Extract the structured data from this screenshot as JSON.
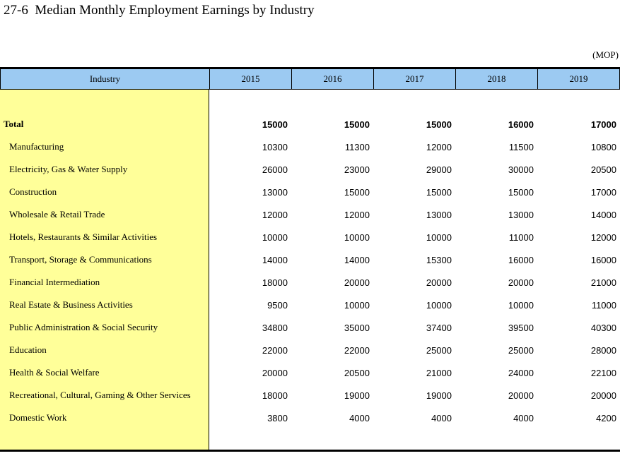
{
  "page": {
    "title": "27-6  Median Monthly Employment Earnings by Industry",
    "unit_label": "(MOP)"
  },
  "colors": {
    "header_bg": "#9ccaf2",
    "stub_bg": "#ffff99",
    "border": "#000000"
  },
  "table": {
    "columns": [
      "Industry",
      "2015",
      "2016",
      "2017",
      "2018",
      "2019"
    ],
    "rows": [
      {
        "label": "Total",
        "bold": true,
        "indent": false,
        "values": [
          "15000",
          "15000",
          "15000",
          "16000",
          "17000"
        ]
      },
      {
        "label": "Manufacturing",
        "bold": false,
        "indent": true,
        "values": [
          "10300",
          "11300",
          "12000",
          "11500",
          "10800"
        ]
      },
      {
        "label": "Electricity, Gas & Water Supply",
        "bold": false,
        "indent": true,
        "values": [
          "26000",
          "23000",
          "29000",
          "30000",
          "20500"
        ]
      },
      {
        "label": "Construction",
        "bold": false,
        "indent": true,
        "values": [
          "13000",
          "15000",
          "15000",
          "15000",
          "17000"
        ]
      },
      {
        "label": "Wholesale & Retail Trade",
        "bold": false,
        "indent": true,
        "values": [
          "12000",
          "12000",
          "13000",
          "13000",
          "14000"
        ]
      },
      {
        "label": "Hotels, Restaurants & Similar Activities",
        "bold": false,
        "indent": true,
        "values": [
          "10000",
          "10000",
          "10000",
          "11000",
          "12000"
        ]
      },
      {
        "label": "Transport, Storage & Communications",
        "bold": false,
        "indent": true,
        "values": [
          "14000",
          "14000",
          "15300",
          "16000",
          "16000"
        ]
      },
      {
        "label": "Financial Intermediation",
        "bold": false,
        "indent": true,
        "values": [
          "18000",
          "20000",
          "20000",
          "20000",
          "21000"
        ]
      },
      {
        "label": "Real Estate & Business Activities",
        "bold": false,
        "indent": true,
        "values": [
          "9500",
          "10000",
          "10000",
          "10000",
          "11000"
        ]
      },
      {
        "label": "Public Administration & Social Security",
        "bold": false,
        "indent": true,
        "values": [
          "34800",
          "35000",
          "37400",
          "39500",
          "40300"
        ]
      },
      {
        "label": "Education",
        "bold": false,
        "indent": true,
        "values": [
          "22000",
          "22000",
          "25000",
          "25000",
          "28000"
        ]
      },
      {
        "label": "Health & Social Welfare",
        "bold": false,
        "indent": true,
        "values": [
          "20000",
          "20500",
          "21000",
          "24000",
          "22100"
        ]
      },
      {
        "label": "Recreational, Cultural, Gaming & Other Services",
        "bold": false,
        "indent": true,
        "values": [
          "18000",
          "19000",
          "19000",
          "20000",
          "20000"
        ]
      },
      {
        "label": "Domestic Work",
        "bold": false,
        "indent": true,
        "values": [
          "3800",
          "4000",
          "4000",
          "4000",
          "4200"
        ]
      }
    ]
  }
}
